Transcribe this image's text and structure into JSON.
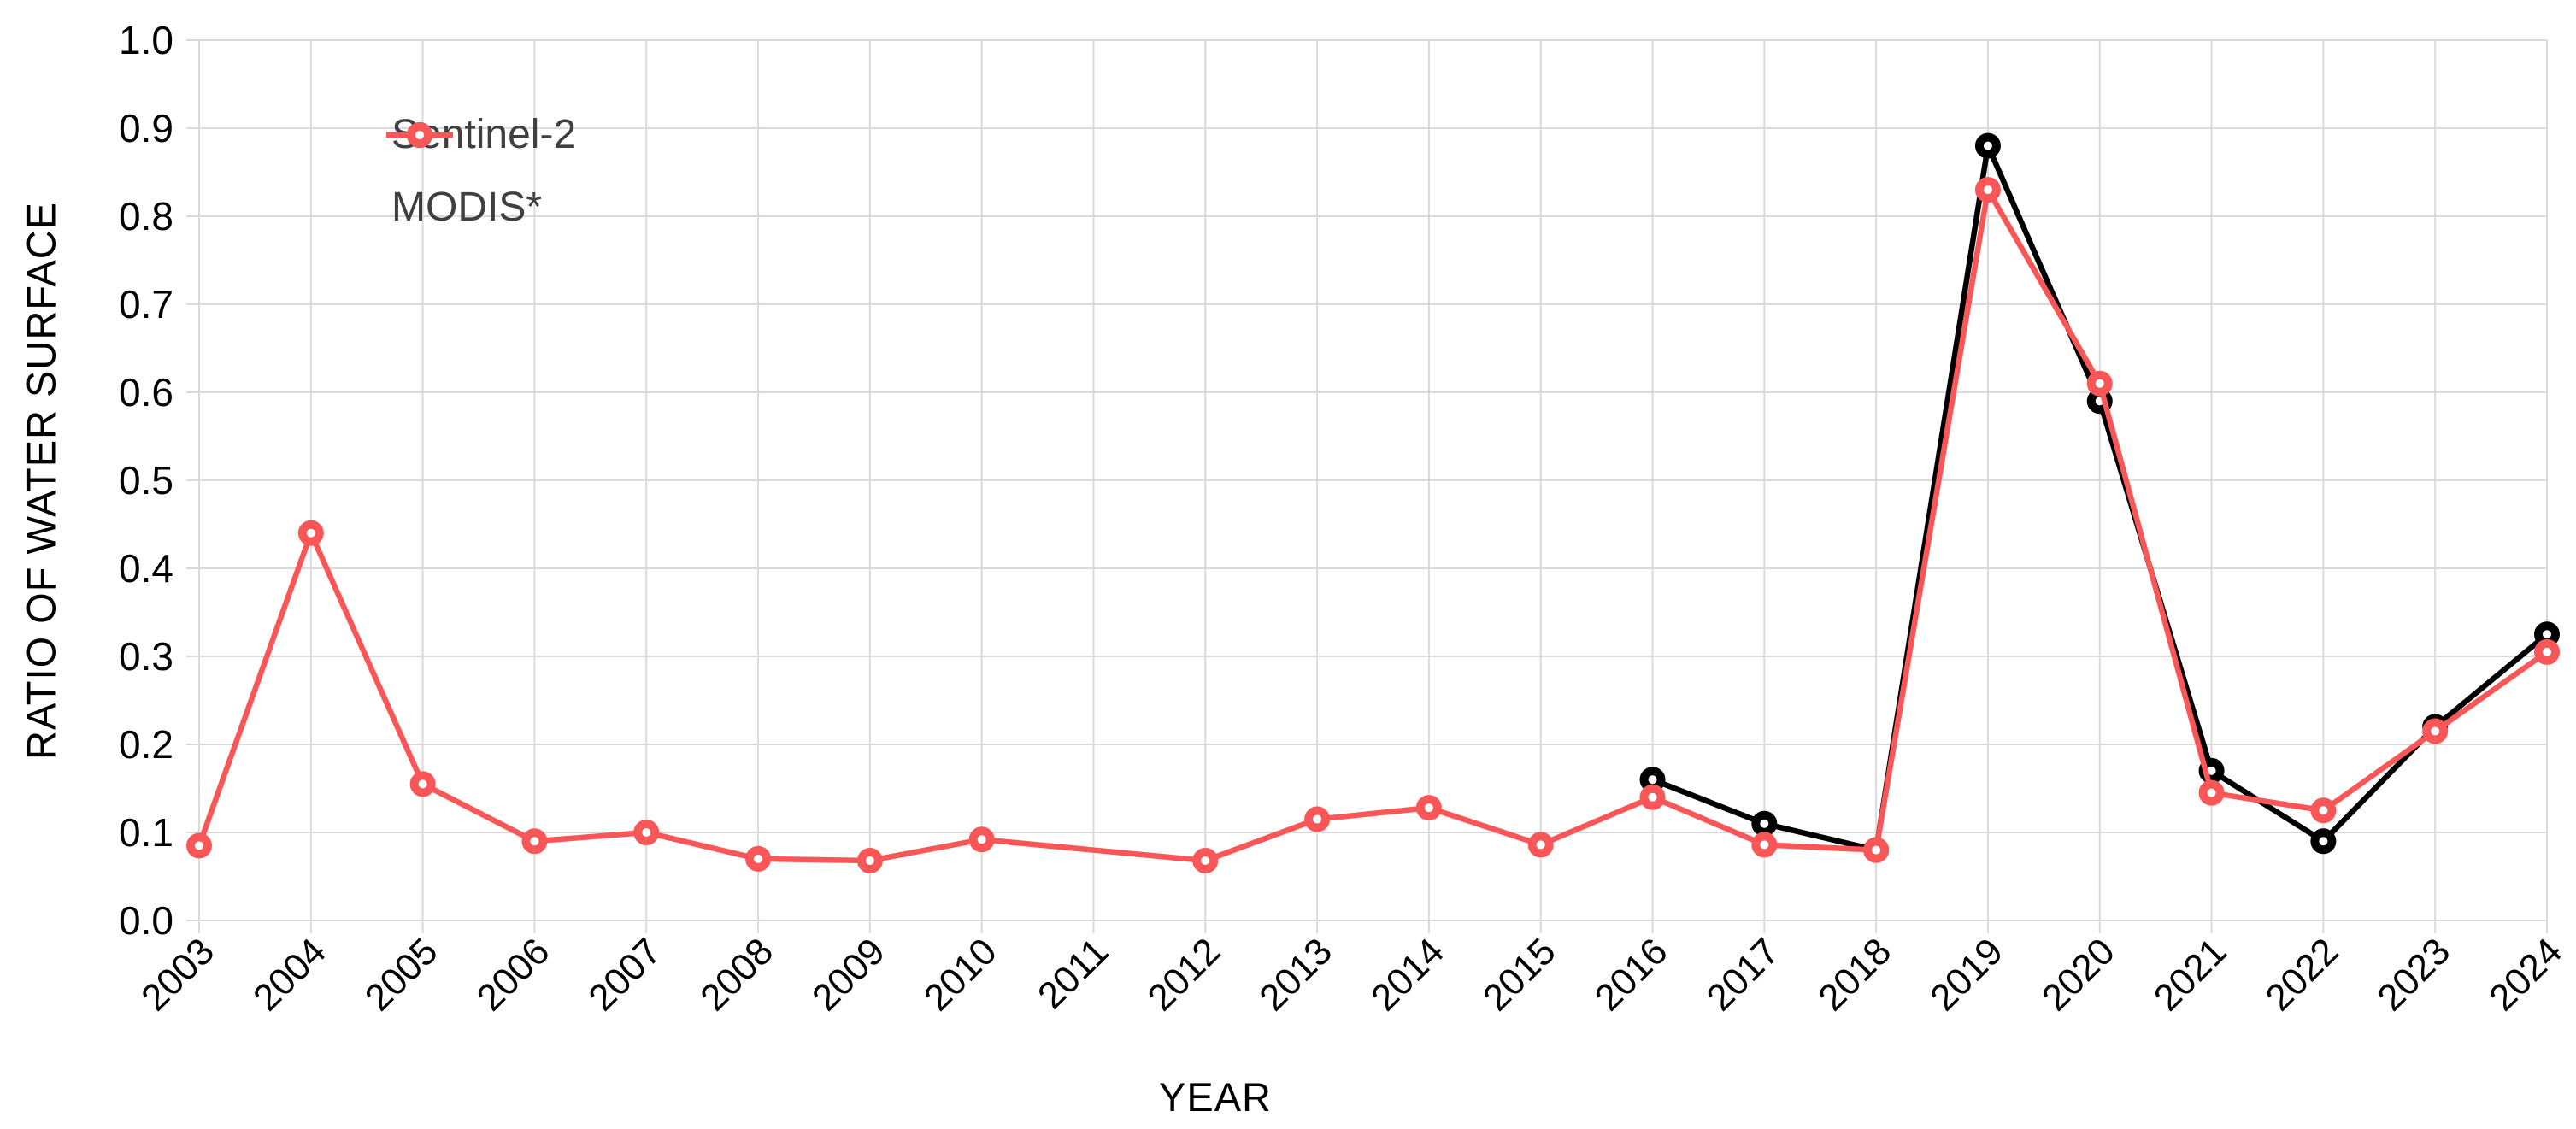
{
  "chart_data": {
    "type": "line",
    "title": "",
    "xlabel": "YEAR",
    "ylabel": "RATIO OF WATER SURFACE",
    "categories": [
      "2003",
      "2004",
      "2005",
      "2006",
      "2007",
      "2008",
      "2009",
      "2010",
      "2011",
      "2012",
      "2013",
      "2014",
      "2015",
      "2016",
      "2017",
      "2018",
      "2019",
      "2020",
      "2021",
      "2022",
      "2023",
      "2024"
    ],
    "ylim": [
      0.0,
      1.0
    ],
    "ytick_interval": 0.1,
    "ytick_labels": [
      "0.0",
      "0.1",
      "0.2",
      "0.3",
      "0.4",
      "0.5",
      "0.6",
      "0.7",
      "0.8",
      "0.9",
      "1.0"
    ],
    "grid": true,
    "legend_position": "top-left-inside",
    "background_color": "#FFFFFF",
    "gridline_color": "#DADADA",
    "axis_text_color": "#000000",
    "legend_text_color": "#3F3F3F",
    "marker_style": "open-circle",
    "series": [
      {
        "name": "Sentinel-2",
        "color": "#000000",
        "values": [
          null,
          null,
          null,
          null,
          null,
          null,
          null,
          null,
          null,
          null,
          null,
          null,
          null,
          0.16,
          0.11,
          0.08,
          0.88,
          0.59,
          0.17,
          0.09,
          0.22,
          0.325
        ]
      },
      {
        "name": "MODIS*",
        "color": "#F95757",
        "values": [
          0.085,
          0.44,
          0.155,
          0.09,
          0.1,
          0.07,
          0.068,
          0.092,
          null,
          0.068,
          0.115,
          0.128,
          0.086,
          0.14,
          0.086,
          0.08,
          0.83,
          0.61,
          0.145,
          0.125,
          0.215,
          0.305
        ]
      }
    ]
  }
}
